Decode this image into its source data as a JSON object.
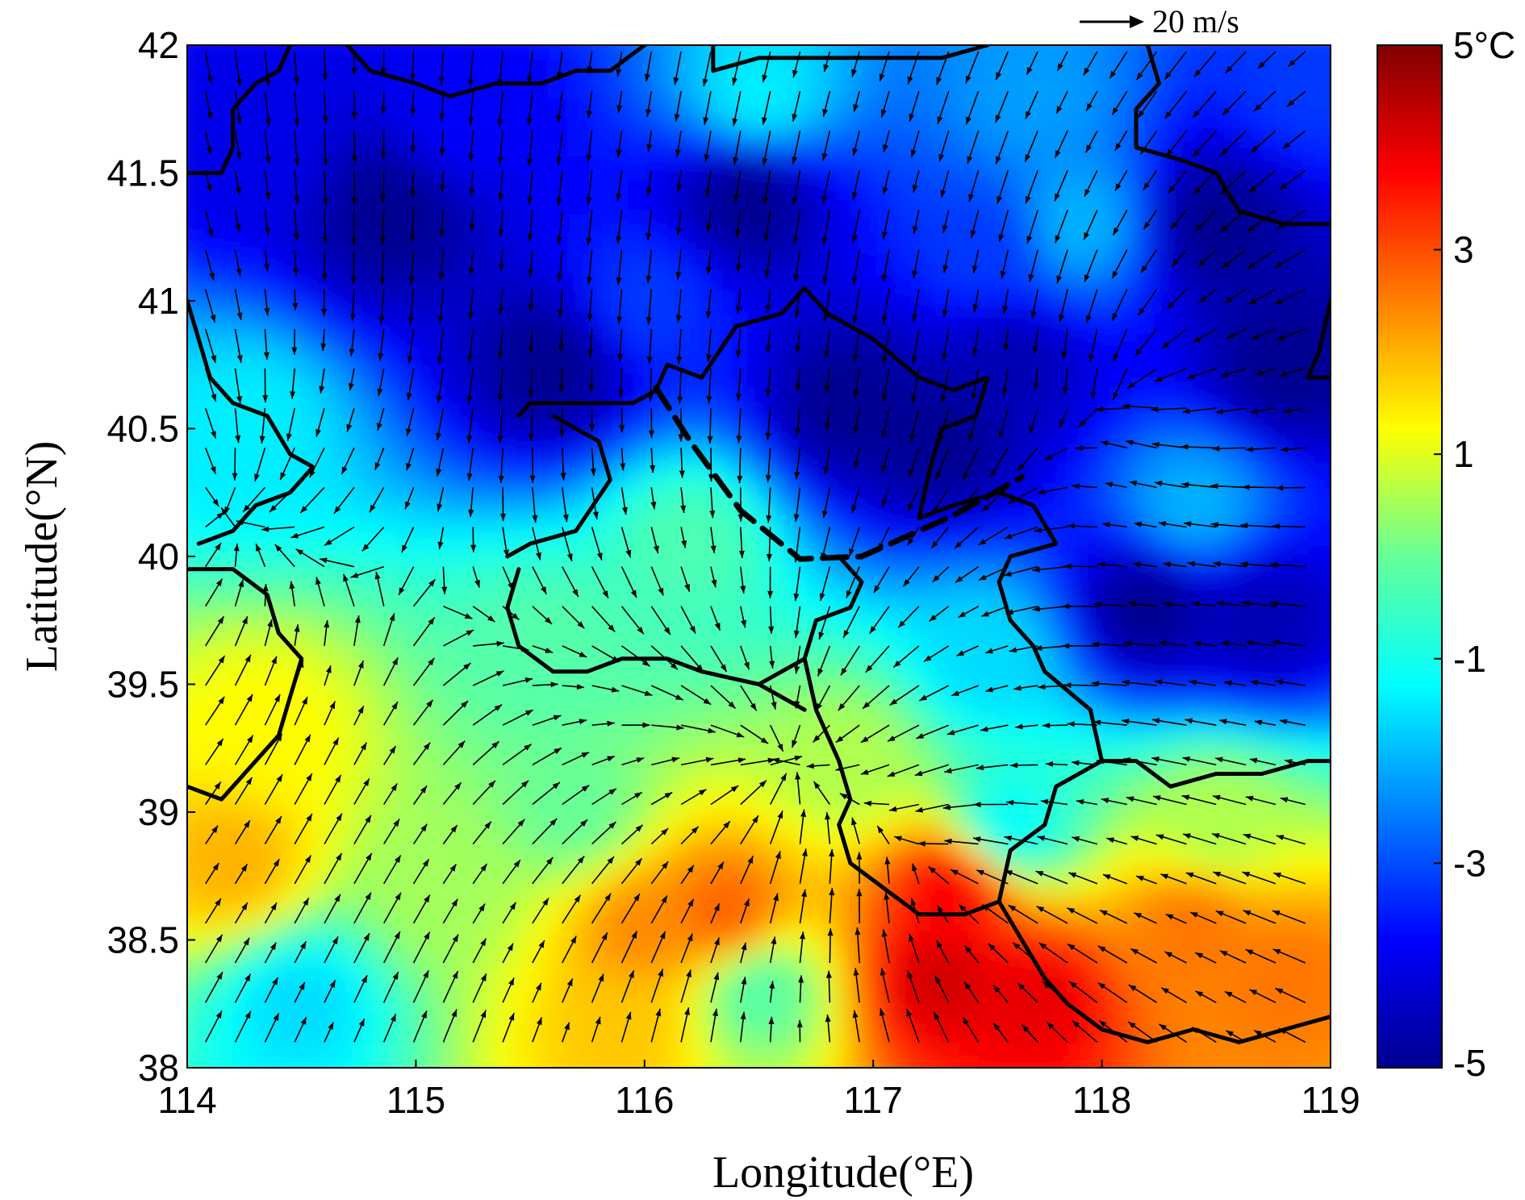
{
  "chart_data": {
    "type": "heatmap",
    "title": "",
    "xlabel": "Longitude(°E)",
    "ylabel": "Latitude(°N)",
    "xlim": [
      114,
      119
    ],
    "ylim": [
      38,
      42
    ],
    "x_ticks": [
      "114",
      "115",
      "116",
      "117",
      "118",
      "119"
    ],
    "y_ticks": [
      "38",
      "38.5",
      "39",
      "39.5",
      "40",
      "40.5",
      "41",
      "41.5",
      "42"
    ],
    "colorbar": {
      "range": [
        -5,
        5
      ],
      "ticks": [
        "5°C",
        "3",
        "1",
        "-1",
        "-3",
        "-5"
      ],
      "colormap": "jet"
    },
    "reference_vector": {
      "label": "20 m/s",
      "value": 20
    },
    "temperature_features": [
      {
        "lon": 114.9,
        "lat": 41.35,
        "value": -5
      },
      {
        "lon": 115.6,
        "lat": 40.75,
        "value": -5
      },
      {
        "lon": 116.45,
        "lat": 41.4,
        "value": -5
      },
      {
        "lon": 116.9,
        "lat": 40.6,
        "value": -5
      },
      {
        "lon": 117.3,
        "lat": 40.45,
        "value": -5
      },
      {
        "lon": 117.6,
        "lat": 40.75,
        "value": -4.6
      },
      {
        "lon": 118.5,
        "lat": 41.3,
        "value": -5
      },
      {
        "lon": 118.8,
        "lat": 40.75,
        "value": -5
      },
      {
        "lon": 118.2,
        "lat": 39.8,
        "value": -5
      },
      {
        "lon": 118.7,
        "lat": 39.75,
        "value": -4.6
      },
      {
        "lon": 115.2,
        "lat": 41.7,
        "value": -3.8
      },
      {
        "lon": 114.3,
        "lat": 41.6,
        "value": -4
      },
      {
        "lon": 114.25,
        "lat": 40.5,
        "value": -1.4
      },
      {
        "lon": 116.2,
        "lat": 40.05,
        "value": -0.3
      },
      {
        "lon": 115.6,
        "lat": 39.6,
        "value": -0.2
      },
      {
        "lon": 114.35,
        "lat": 39.3,
        "value": 1.3
      },
      {
        "lon": 114.2,
        "lat": 38.8,
        "value": 2.0
      },
      {
        "lon": 114.5,
        "lat": 38.25,
        "value": -1.6
      },
      {
        "lon": 115.1,
        "lat": 38.7,
        "value": 0.5
      },
      {
        "lon": 116.0,
        "lat": 38.55,
        "value": 2.4
      },
      {
        "lon": 115.9,
        "lat": 38.15,
        "value": 1.8
      },
      {
        "lon": 116.35,
        "lat": 38.6,
        "value": 2.8
      },
      {
        "lon": 116.5,
        "lat": 38.3,
        "value": -0.2
      },
      {
        "lon": 117.3,
        "lat": 38.35,
        "value": 4.2
      },
      {
        "lon": 117.35,
        "lat": 38.7,
        "value": 3.8
      },
      {
        "lon": 117.7,
        "lat": 38.25,
        "value": 4.0
      },
      {
        "lon": 118.4,
        "lat": 38.55,
        "value": 2.6
      },
      {
        "lon": 118.8,
        "lat": 38.35,
        "value": 2.6
      },
      {
        "lon": 118.5,
        "lat": 38.95,
        "value": 0.6
      },
      {
        "lon": 117.6,
        "lat": 38.95,
        "value": -1.2
      },
      {
        "lon": 117.5,
        "lat": 39.6,
        "value": -1.6
      },
      {
        "lon": 116.9,
        "lat": 39.2,
        "value": 0.6
      },
      {
        "lon": 115.7,
        "lat": 39.0,
        "value": 0.0
      },
      {
        "lon": 116.0,
        "lat": 41.0,
        "value": -3.2
      },
      {
        "lon": 117.5,
        "lat": 41.2,
        "value": -3.2
      },
      {
        "lon": 117.9,
        "lat": 41.3,
        "value": -2.0
      },
      {
        "lon": 118.4,
        "lat": 40.2,
        "value": -2.0
      },
      {
        "lon": 117.7,
        "lat": 41.8,
        "value": -2.2
      },
      {
        "lon": 116.5,
        "lat": 41.8,
        "value": -1.4
      },
      {
        "lon": 118.9,
        "lat": 41.85,
        "value": -3.2
      }
    ],
    "wind_convergence": [
      {
        "lon": 114.1,
        "lat": 40.2
      },
      {
        "lon": 116.6,
        "lat": 39.2
      },
      {
        "lon": 118.2,
        "lat": 40.7
      },
      {
        "lon": 117.3,
        "lat": 38.75
      }
    ],
    "front_line": [
      {
        "lon": 116.05,
        "lat": 40.66
      },
      {
        "lon": 116.2,
        "lat": 40.45
      },
      {
        "lon": 116.42,
        "lat": 40.18
      },
      {
        "lon": 116.68,
        "lat": 39.99
      },
      {
        "lon": 116.95,
        "lat": 40.0
      },
      {
        "lon": 117.35,
        "lat": 40.16
      },
      {
        "lon": 117.65,
        "lat": 40.31
      }
    ],
    "boundaries": [
      [
        [
          114.0,
          41.0
        ],
        [
          114.05,
          40.85
        ],
        [
          114.1,
          40.7
        ],
        [
          114.2,
          40.6
        ],
        [
          114.35,
          40.55
        ],
        [
          114.45,
          40.4
        ],
        [
          114.55,
          40.35
        ],
        [
          114.45,
          40.25
        ],
        [
          114.3,
          40.2
        ],
        [
          114.2,
          40.1
        ],
        [
          114.05,
          40.05
        ]
      ],
      [
        [
          114.0,
          39.95
        ],
        [
          114.2,
          39.95
        ],
        [
          114.35,
          39.85
        ],
        [
          114.4,
          39.7
        ],
        [
          114.5,
          39.6
        ],
        [
          114.45,
          39.45
        ],
        [
          114.4,
          39.3
        ],
        [
          114.3,
          39.2
        ],
        [
          114.15,
          39.05
        ],
        [
          114.0,
          39.1
        ]
      ],
      [
        [
          114.0,
          41.5
        ],
        [
          114.15,
          41.5
        ],
        [
          114.2,
          41.6
        ],
        [
          114.2,
          41.75
        ],
        [
          114.3,
          41.85
        ],
        [
          114.4,
          41.9
        ],
        [
          114.45,
          42.0
        ]
      ],
      [
        [
          114.7,
          42.0
        ],
        [
          114.8,
          41.9
        ],
        [
          115.0,
          41.85
        ],
        [
          115.15,
          41.8
        ],
        [
          115.35,
          41.85
        ],
        [
          115.55,
          41.85
        ],
        [
          115.7,
          41.9
        ],
        [
          115.85,
          41.9
        ],
        [
          116.0,
          42.0
        ]
      ],
      [
        [
          116.3,
          42.0
        ],
        [
          116.3,
          41.9
        ],
        [
          116.5,
          41.95
        ],
        [
          116.8,
          41.95
        ],
        [
          117.0,
          41.95
        ],
        [
          117.3,
          41.95
        ],
        [
          117.5,
          42.0
        ]
      ],
      [
        [
          118.2,
          42.0
        ],
        [
          118.25,
          41.85
        ],
        [
          118.15,
          41.75
        ],
        [
          118.15,
          41.6
        ],
        [
          118.35,
          41.55
        ],
        [
          118.5,
          41.5
        ],
        [
          118.6,
          41.35
        ],
        [
          118.8,
          41.3
        ],
        [
          119.0,
          41.3
        ]
      ],
      [
        [
          119.0,
          41.0
        ],
        [
          118.95,
          40.8
        ],
        [
          118.9,
          40.7
        ],
        [
          119.0,
          40.7
        ]
      ],
      [
        [
          115.45,
          40.55
        ],
        [
          115.5,
          40.6
        ],
        [
          115.65,
          40.6
        ],
        [
          115.8,
          40.6
        ],
        [
          115.95,
          40.6
        ],
        [
          116.05,
          40.65
        ],
        [
          116.1,
          40.75
        ],
        [
          116.25,
          40.7
        ],
        [
          116.4,
          40.9
        ],
        [
          116.6,
          40.95
        ],
        [
          116.7,
          41.05
        ],
        [
          116.8,
          40.95
        ],
        [
          117.0,
          40.85
        ],
        [
          117.2,
          40.7
        ],
        [
          117.35,
          40.65
        ],
        [
          117.5,
          40.7
        ],
        [
          117.45,
          40.55
        ],
        [
          117.3,
          40.5
        ],
        [
          117.25,
          40.35
        ],
        [
          117.2,
          40.15
        ],
        [
          117.35,
          40.2
        ],
        [
          117.55,
          40.25
        ],
        [
          117.7,
          40.2
        ],
        [
          117.8,
          40.05
        ],
        [
          117.6,
          40.0
        ],
        [
          117.55,
          39.9
        ],
        [
          117.6,
          39.75
        ],
        [
          117.7,
          39.65
        ],
        [
          117.75,
          39.55
        ],
        [
          117.95,
          39.4
        ],
        [
          118.0,
          39.2
        ],
        [
          117.8,
          39.1
        ],
        [
          117.75,
          38.95
        ],
        [
          117.6,
          38.85
        ],
        [
          117.55,
          38.65
        ],
        [
          117.4,
          38.6
        ],
        [
          117.2,
          38.6
        ],
        [
          117.05,
          38.7
        ],
        [
          116.9,
          38.8
        ],
        [
          116.85,
          38.95
        ],
        [
          116.9,
          39.05
        ],
        [
          116.85,
          39.2
        ],
        [
          116.75,
          39.4
        ],
        [
          116.7,
          39.6
        ],
        [
          116.75,
          39.75
        ],
        [
          116.9,
          39.8
        ],
        [
          116.95,
          39.9
        ],
        [
          116.85,
          40.0
        ]
      ],
      [
        [
          115.4,
          40.0
        ],
        [
          115.5,
          40.05
        ],
        [
          115.7,
          40.1
        ],
        [
          115.85,
          40.3
        ],
        [
          115.8,
          40.45
        ],
        [
          115.6,
          40.55
        ]
      ],
      [
        [
          115.45,
          39.95
        ],
        [
          115.4,
          39.8
        ],
        [
          115.45,
          39.65
        ],
        [
          115.6,
          39.55
        ],
        [
          115.75,
          39.55
        ],
        [
          115.9,
          39.6
        ],
        [
          116.1,
          39.6
        ],
        [
          116.25,
          39.55
        ],
        [
          116.5,
          39.5
        ],
        [
          116.7,
          39.6
        ]
      ],
      [
        [
          116.5,
          39.5
        ],
        [
          116.6,
          39.45
        ],
        [
          116.7,
          39.4
        ]
      ],
      [
        [
          118.0,
          39.2
        ],
        [
          118.15,
          39.2
        ],
        [
          118.3,
          39.1
        ],
        [
          118.5,
          39.15
        ],
        [
          118.7,
          39.15
        ],
        [
          118.9,
          39.2
        ],
        [
          119.0,
          39.2
        ]
      ],
      [
        [
          117.55,
          38.65
        ],
        [
          117.65,
          38.5
        ],
        [
          117.75,
          38.35
        ],
        [
          117.85,
          38.25
        ],
        [
          118.0,
          38.15
        ],
        [
          118.2,
          38.1
        ],
        [
          118.4,
          38.15
        ],
        [
          118.6,
          38.1
        ],
        [
          118.8,
          38.15
        ],
        [
          119.0,
          38.2
        ]
      ]
    ]
  }
}
